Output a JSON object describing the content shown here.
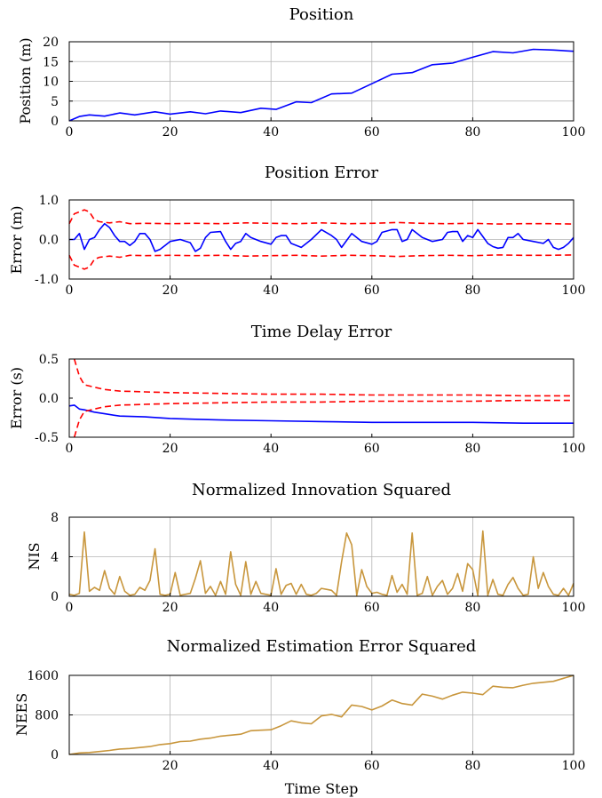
{
  "figure": {
    "shared_xlabel": "Time Step"
  },
  "chart_data": [
    {
      "type": "line",
      "title": "Position",
      "xlabel": "",
      "ylabel": "Position (m)",
      "xlim": [
        0,
        100
      ],
      "ylim": [
        0,
        20
      ],
      "xticks": [
        "0",
        "20",
        "40",
        "60",
        "80",
        "100"
      ],
      "yticks": [
        "0",
        "5",
        "10",
        "15",
        "20"
      ],
      "grid": true,
      "series": [
        {
          "color": "#0000ff",
          "dash": "solid",
          "x": [
            0,
            2,
            4,
            7,
            10,
            13,
            17,
            20,
            24,
            27,
            30,
            34,
            38,
            41,
            45,
            48,
            52,
            56,
            60,
            64,
            68,
            72,
            76,
            80,
            84,
            88,
            92,
            96,
            100
          ],
          "y": [
            0,
            1.1,
            1.5,
            1.2,
            2.0,
            1.5,
            2.3,
            1.7,
            2.3,
            1.8,
            2.5,
            2.1,
            3.2,
            2.9,
            4.8,
            4.6,
            6.8,
            7.0,
            9.4,
            11.8,
            12.2,
            14.2,
            14.6,
            16.1,
            17.5,
            17.2,
            18.1,
            17.9,
            17.6
          ]
        }
      ]
    },
    {
      "type": "line",
      "title": "Position Error",
      "xlabel": "",
      "ylabel": "Error (m)",
      "xlim": [
        0,
        100
      ],
      "ylim": [
        -1.0,
        1.0
      ],
      "xticks": [
        "0",
        "20",
        "40",
        "60",
        "80",
        "100"
      ],
      "yticks": [
        "-1.0",
        "0.0",
        "1.0"
      ],
      "grid": true,
      "series": [
        {
          "color": "#0000ff",
          "dash": "solid",
          "x": [
            0,
            1,
            2,
            3,
            4,
            5,
            6,
            7,
            8,
            9,
            10,
            11,
            12,
            13,
            14,
            15,
            16,
            17,
            18,
            19,
            20,
            22,
            24,
            25,
            26,
            27,
            28,
            30,
            31,
            32,
            33,
            34,
            35,
            36,
            38,
            40,
            41,
            42,
            43,
            44,
            46,
            48,
            50,
            52,
            53,
            54,
            56,
            58,
            60,
            61,
            62,
            64,
            65,
            66,
            67,
            68,
            70,
            72,
            74,
            75,
            76,
            77,
            78,
            79,
            80,
            81,
            83,
            84,
            85,
            86,
            87,
            88,
            89,
            90,
            92,
            94,
            95,
            96,
            97,
            98,
            99,
            100
          ],
          "y": [
            0.0,
            0.0,
            0.15,
            -0.25,
            0.0,
            0.05,
            0.25,
            0.4,
            0.3,
            0.1,
            -0.05,
            -0.05,
            -0.15,
            -0.05,
            0.15,
            0.15,
            0.0,
            -0.3,
            -0.25,
            -0.15,
            -0.05,
            0.0,
            -0.08,
            -0.3,
            -0.22,
            0.05,
            0.18,
            0.2,
            -0.05,
            -0.25,
            -0.1,
            -0.05,
            0.15,
            0.05,
            -0.05,
            -0.12,
            0.05,
            0.1,
            0.1,
            -0.1,
            -0.2,
            0.0,
            0.25,
            0.1,
            0.0,
            -0.2,
            0.15,
            -0.05,
            -0.12,
            -0.05,
            0.18,
            0.25,
            0.25,
            -0.05,
            0.0,
            0.25,
            0.05,
            -0.05,
            0.0,
            0.18,
            0.2,
            0.2,
            -0.05,
            0.1,
            0.05,
            0.25,
            -0.1,
            -0.18,
            -0.22,
            -0.2,
            0.05,
            0.05,
            0.15,
            0.0,
            -0.05,
            -0.1,
            0.0,
            -0.2,
            -0.25,
            -0.2,
            -0.1,
            0.05
          ]
        },
        {
          "color": "#ff0000",
          "dash": "dashed",
          "x": [
            0,
            1,
            2,
            3,
            4,
            5,
            6,
            8,
            10,
            12,
            15,
            20,
            25,
            30,
            35,
            40,
            45,
            50,
            55,
            60,
            65,
            70,
            75,
            80,
            85,
            90,
            95,
            100
          ],
          "y": [
            0.4,
            0.65,
            0.7,
            0.75,
            0.7,
            0.5,
            0.45,
            0.42,
            0.45,
            0.4,
            0.41,
            0.4,
            0.41,
            0.4,
            0.42,
            0.41,
            0.4,
            0.42,
            0.4,
            0.41,
            0.43,
            0.41,
            0.4,
            0.41,
            0.39,
            0.4,
            0.4,
            0.39
          ]
        },
        {
          "color": "#ff0000",
          "dash": "dashed",
          "x": [
            0,
            1,
            2,
            3,
            4,
            5,
            6,
            8,
            10,
            12,
            15,
            20,
            25,
            30,
            35,
            40,
            45,
            50,
            55,
            60,
            65,
            70,
            75,
            80,
            85,
            90,
            95,
            100
          ],
          "y": [
            -0.4,
            -0.65,
            -0.7,
            -0.75,
            -0.7,
            -0.5,
            -0.45,
            -0.42,
            -0.45,
            -0.4,
            -0.41,
            -0.4,
            -0.41,
            -0.4,
            -0.42,
            -0.41,
            -0.4,
            -0.42,
            -0.4,
            -0.41,
            -0.43,
            -0.41,
            -0.4,
            -0.41,
            -0.39,
            -0.4,
            -0.4,
            -0.39
          ]
        }
      ]
    },
    {
      "type": "line",
      "title": "Time Delay Error",
      "xlabel": "",
      "ylabel": "Error (s)",
      "xlim": [
        0,
        100
      ],
      "ylim": [
        -0.5,
        0.5
      ],
      "xticks": [
        "0",
        "20",
        "40",
        "60",
        "80",
        "100"
      ],
      "yticks": [
        "-0.5",
        "0.0",
        "0.5"
      ],
      "grid": false,
      "series": [
        {
          "color": "#0000ff",
          "dash": "solid",
          "x": [
            0,
            1,
            2,
            3,
            5,
            7,
            10,
            15,
            20,
            25,
            30,
            40,
            50,
            60,
            70,
            80,
            90,
            100
          ],
          "y": [
            -0.1,
            -0.09,
            -0.14,
            -0.15,
            -0.18,
            -0.2,
            -0.23,
            -0.24,
            -0.26,
            -0.27,
            -0.28,
            -0.29,
            -0.3,
            -0.31,
            -0.31,
            -0.31,
            -0.32,
            -0.32
          ]
        },
        {
          "color": "#ff0000",
          "dash": "dashed",
          "x": [
            1,
            2,
            3,
            5,
            7,
            10,
            15,
            20,
            30,
            40,
            50,
            60,
            70,
            80,
            90,
            100
          ],
          "y": [
            0.5,
            0.28,
            0.17,
            0.14,
            0.11,
            0.09,
            0.08,
            0.07,
            0.06,
            0.05,
            0.05,
            0.04,
            0.04,
            0.04,
            0.03,
            0.03
          ]
        },
        {
          "color": "#ff0000",
          "dash": "dashed",
          "x": [
            1,
            2,
            3,
            5,
            7,
            10,
            15,
            20,
            30,
            40,
            50,
            60,
            70,
            80,
            90,
            100
          ],
          "y": [
            -0.5,
            -0.28,
            -0.17,
            -0.14,
            -0.11,
            -0.09,
            -0.08,
            -0.07,
            -0.06,
            -0.05,
            -0.05,
            -0.04,
            -0.04,
            -0.04,
            -0.03,
            -0.03
          ]
        }
      ]
    },
    {
      "type": "line",
      "title": "Normalized Innovation Squared",
      "xlabel": "",
      "ylabel": "NIS",
      "xlim": [
        0,
        100
      ],
      "ylim": [
        0,
        8
      ],
      "xticks": [
        "0",
        "20",
        "40",
        "60",
        "80",
        "100"
      ],
      "yticks": [
        "0",
        "4",
        "8"
      ],
      "grid": true,
      "series": [
        {
          "color": "#c8963c",
          "dash": "solid",
          "x": [
            0,
            1,
            2,
            3,
            4,
            5,
            6,
            7,
            8,
            9,
            10,
            11,
            12,
            13,
            14,
            15,
            16,
            17,
            18,
            19,
            20,
            21,
            22,
            23,
            24,
            25,
            26,
            27,
            28,
            29,
            30,
            31,
            32,
            33,
            34,
            35,
            36,
            37,
            38,
            39,
            40,
            41,
            42,
            43,
            44,
            45,
            46,
            47,
            48,
            49,
            50,
            51,
            52,
            53,
            54,
            55,
            56,
            57,
            58,
            59,
            60,
            61,
            62,
            63,
            64,
            65,
            66,
            67,
            68,
            69,
            70,
            71,
            72,
            73,
            74,
            75,
            76,
            77,
            78,
            79,
            80,
            81,
            82,
            83,
            84,
            85,
            86,
            87,
            88,
            89,
            90,
            91,
            92,
            93,
            94,
            95,
            96,
            97,
            98,
            99,
            100
          ],
          "y": [
            0.2,
            0.1,
            0.3,
            6.5,
            0.5,
            0.9,
            0.6,
            2.6,
            0.8,
            0.2,
            2.0,
            0.5,
            0.1,
            0.2,
            0.9,
            0.6,
            1.6,
            4.8,
            0.2,
            0.1,
            0.2,
            2.4,
            0.1,
            0.2,
            0.3,
            1.8,
            3.6,
            0.3,
            1.0,
            0.1,
            1.5,
            0.2,
            4.5,
            1.2,
            0.1,
            3.5,
            0.2,
            1.5,
            0.3,
            0.2,
            0.1,
            2.8,
            0.2,
            1.1,
            1.3,
            0.2,
            1.2,
            0.2,
            0.1,
            0.3,
            0.8,
            0.7,
            0.6,
            0.1,
            3.5,
            6.4,
            5.2,
            0.1,
            2.7,
            1.0,
            0.3,
            0.4,
            0.2,
            0.1,
            2.1,
            0.4,
            1.2,
            0.2,
            6.4,
            0.1,
            0.3,
            2.0,
            0.1,
            1.0,
            1.6,
            0.2,
            0.8,
            2.3,
            0.5,
            3.3,
            2.7,
            0.1,
            6.6,
            0.1,
            1.7,
            0.2,
            0.1,
            1.2,
            1.9,
            0.8,
            0.1,
            0.2,
            4.0,
            0.8,
            2.4,
            1.0,
            0.2,
            0.1,
            0.8,
            0.1,
            1.3
          ]
        }
      ]
    },
    {
      "type": "line",
      "title": "Normalized Estimation Error Squared",
      "xlabel": "Time Step",
      "ylabel": "NEES",
      "xlim": [
        0,
        100
      ],
      "ylim": [
        0,
        1600
      ],
      "xticks": [
        "20",
        "40",
        "60",
        "80",
        "100"
      ],
      "yticks": [
        "0",
        "800",
        "1600"
      ],
      "grid": true,
      "series": [
        {
          "color": "#c8963c",
          "dash": "solid",
          "x": [
            0,
            2,
            4,
            6,
            8,
            10,
            12,
            14,
            16,
            18,
            20,
            22,
            24,
            26,
            28,
            30,
            32,
            34,
            36,
            38,
            40,
            42,
            44,
            46,
            48,
            50,
            52,
            54,
            56,
            58,
            60,
            62,
            64,
            66,
            68,
            70,
            72,
            74,
            76,
            78,
            80,
            82,
            84,
            86,
            88,
            90,
            92,
            94,
            96,
            98,
            100
          ],
          "y": [
            0,
            30,
            40,
            60,
            80,
            110,
            120,
            140,
            160,
            200,
            220,
            260,
            270,
            310,
            330,
            370,
            390,
            410,
            480,
            490,
            500,
            580,
            680,
            640,
            620,
            780,
            810,
            760,
            1000,
            970,
            900,
            980,
            1100,
            1030,
            1000,
            1220,
            1180,
            1120,
            1200,
            1260,
            1240,
            1210,
            1380,
            1360,
            1350,
            1400,
            1440,
            1460,
            1480,
            1540,
            1600
          ]
        }
      ]
    }
  ]
}
